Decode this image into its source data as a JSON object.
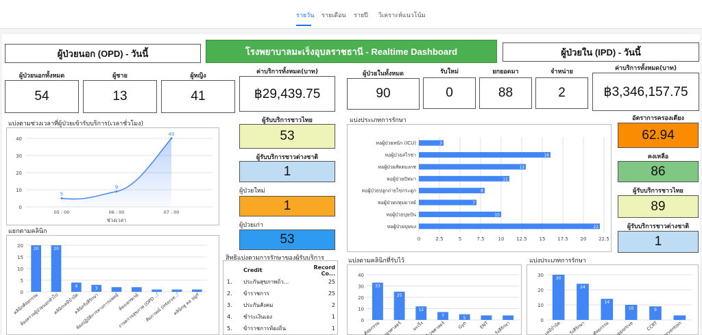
{
  "nav": {
    "tabs": [
      {
        "label": "รายวัน",
        "active": true
      },
      {
        "label": "รายเดือน",
        "active": false
      },
      {
        "label": "รายปี",
        "active": false
      },
      {
        "label": "วิเคราะห์แนวโน้ม",
        "active": false
      }
    ]
  },
  "header": {
    "opd_title": "ผู้ป่วยนอก (OPD) - วันนี้",
    "main_title": "โรงพยาบาลมะเร็งอุบลราชธานี - Realtime Dashboard",
    "ipd_title": "ผู้ป่วยใน (IPD) - วันนี้",
    "title_bg": "#4caf50"
  },
  "opd": {
    "total_label": "ผู้ป่วยนอกทั้งหมด",
    "total": "54",
    "male_label": "ผู้ชาย",
    "male": "13",
    "female_label": "ผู้หญิง",
    "female": "41",
    "cost_label": "ค่าบริการทั้งหมด(บาท)",
    "cost": "฿29,439.75",
    "thai_label": "ผู้รับบริการชาวไทย",
    "thai": "53",
    "foreign_label": "ผู้รับบริการชาวต่างชาติ",
    "foreign": "1",
    "new_label": "ผู้ป่วยใหม่",
    "new": "1",
    "old_label": "ผู้ป่วยเก่า",
    "old": "53",
    "colors": {
      "thai": "#eef4b8",
      "foreign": "#bfdcf5",
      "new": "#f9a825",
      "old": "#2f9bf0"
    }
  },
  "ipd": {
    "total_label": "ผู้ป่วยในทั้งหมด",
    "total": "90",
    "admit_label": "รับใหม่",
    "admit": "0",
    "carry_label": "ยกยอดมา",
    "carry": "88",
    "discharge_label": "จำหน่าย",
    "discharge": "2",
    "cost_label": "ค่าบริการทั้งหมด(บาท)",
    "cost": "฿3,346,157.75",
    "occ_label": "อัตราการครองเตียง",
    "occ": "62.94",
    "remain_label": "คงเหลือ",
    "remain": "86",
    "thai_label": "ผู้รับบริการชาวไทย",
    "thai": "89",
    "foreign_label": "ผู้รับบริการชาวต่างชาติ",
    "foreign": "1",
    "colors": {
      "occ": "#fb8c00",
      "remain": "#81c784",
      "thai": "#eef4b8",
      "foreign": "#bfdcf5"
    }
  },
  "rights_table": {
    "title": "สิทธิแบ่งตามการรักษาของผู้รับบริการ",
    "headers": [
      "",
      "Credit",
      "Record Co..."
    ],
    "rows": [
      [
        "1.",
        "ประกันสุขภาพถ้ว...",
        "25"
      ],
      [
        "2.",
        "ข้าราชการ",
        "25"
      ],
      [
        "3.",
        "ประกันสังคม",
        "2"
      ],
      [
        "4.",
        "ชำระเงินเอง",
        "1"
      ],
      [
        "5.",
        "ข้าราชการท้องถิ่น",
        "1"
      ]
    ]
  },
  "chart_data": [
    {
      "type": "area",
      "title": "แบ่งตามช่วงเวลาที่ผู้ป่วยเข้ารับบริการ(เวลาชั่วโมง)",
      "xlabel": "ช่วงเวลา",
      "categories": [
        "05 : 00",
        "06 : 00",
        "07 : 00"
      ],
      "values": [
        5,
        9,
        40
      ],
      "ylim": [
        0,
        40
      ],
      "yticks": [
        0,
        10,
        20,
        30,
        40
      ],
      "color": "#4285f4"
    },
    {
      "type": "bar",
      "title": "แยกตามคลินิก",
      "categories": [
        "คลินิกศัลยกรรม",
        "ห้องตรวจผู้ป่วยนอกทั่วไป",
        "คลินิกเคมีบำบัด",
        "คลินิกรังสีรักษา",
        "ห้องปฏิบัติการทางการแพทย์",
        "ห้องเอกซเรย์",
        "งานตรวจสุขภาพ (OPD ...",
        "สัมภาษณ์ (interve...",
        "คลินิกหู คอ จมูก"
      ],
      "values": [
        20,
        20,
        4,
        3,
        2,
        2,
        1,
        1,
        1
      ],
      "ylim": [
        0,
        20
      ],
      "yticks": [
        0,
        5,
        10,
        15,
        20
      ],
      "color": "#4285f4"
    },
    {
      "type": "bar",
      "orientation": "horizontal",
      "title": "แบ่งประเภทการรักษา",
      "categories": [
        "หอผู้ป่วยหนัก (ICU)",
        "หอผู้ป่วยสไรชา",
        "หอผู้ป่วยสัตตบงกช",
        "หอผู้ป่วยปัทมา",
        "หอผู้ป่วยปลูกถ่ายไขกระดูก",
        "หอผู้ป่วยปทุมมาลย์",
        "หอผู้ป่วยบุษบัน",
        "หอผู้ป่วยบุษบง"
      ],
      "values": [
        3,
        16,
        13,
        11,
        8,
        7,
        10,
        22
      ],
      "xlim": [
        0,
        22.5
      ],
      "xticks": [
        "0",
        "2.5",
        "5",
        "7.5",
        "10",
        "12.5",
        "15",
        "17.5",
        "20",
        "22.5"
      ],
      "color": "#4285f4"
    },
    {
      "type": "bar",
      "title": "แบ่งตามคลินิกที่รับไว้",
      "categories": [
        "ศัลยกรรม",
        "อายุรศาสตร์",
        "มะเร็ง",
        "สูตินรีเวชศาสตร์",
        "Gyn",
        "ENT",
        "รังสีรักษา"
      ],
      "values": [
        33,
        25,
        12,
        7,
        5,
        4,
        4
      ],
      "ylim": [
        0,
        40
      ],
      "yticks": [
        0,
        10,
        20,
        30,
        40
      ],
      "color": "#4285f4"
    },
    {
      "type": "bar",
      "title": "แบ่งประเภทการรักษา",
      "categories": [
        "เคมีบำบัด",
        "รังสีรักษา",
        "ศัลยกรรม",
        "Supportive",
        "CCRT",
        "Intervention"
      ],
      "values": [
        30,
        24,
        14,
        10,
        9,
        3
      ],
      "ylim": [
        0,
        30
      ],
      "yticks": [
        0,
        10,
        20,
        30
      ],
      "color": "#4285f4"
    }
  ]
}
